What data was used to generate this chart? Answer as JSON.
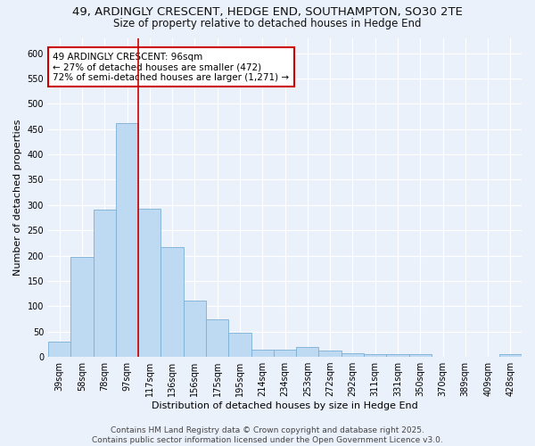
{
  "title_line1": "49, ARDINGLY CRESCENT, HEDGE END, SOUTHAMPTON, SO30 2TE",
  "title_line2": "Size of property relative to detached houses in Hedge End",
  "xlabel": "Distribution of detached houses by size in Hedge End",
  "ylabel": "Number of detached properties",
  "categories": [
    "39sqm",
    "58sqm",
    "78sqm",
    "97sqm",
    "117sqm",
    "136sqm",
    "156sqm",
    "175sqm",
    "195sqm",
    "214sqm",
    "234sqm",
    "253sqm",
    "272sqm",
    "292sqm",
    "311sqm",
    "331sqm",
    "350sqm",
    "370sqm",
    "389sqm",
    "409sqm",
    "428sqm"
  ],
  "values": [
    30,
    197,
    290,
    462,
    293,
    217,
    112,
    75,
    47,
    15,
    15,
    20,
    12,
    8,
    5,
    5,
    5,
    0,
    0,
    0,
    5
  ],
  "bar_color": "#BEDAF2",
  "bar_edge_color": "#7AAFD4",
  "vline_x_index": 3,
  "vline_color": "#CC0000",
  "annotation_line1": "49 ARDINGLY CRESCENT: 96sqm",
  "annotation_line2": "← 27% of detached houses are smaller (472)",
  "annotation_line3": "72% of semi-detached houses are larger (1,271) →",
  "annotation_box_color": "#FFFFFF",
  "annotation_box_edge": "#CC0000",
  "ylim": [
    0,
    630
  ],
  "yticks": [
    0,
    50,
    100,
    150,
    200,
    250,
    300,
    350,
    400,
    450,
    500,
    550,
    600
  ],
  "background_color": "#EBF1FA",
  "grid_color": "#FFFFFF",
  "footer_line1": "Contains HM Land Registry data © Crown copyright and database right 2025.",
  "footer_line2": "Contains public sector information licensed under the Open Government Licence v3.0.",
  "title_fontsize": 9.5,
  "subtitle_fontsize": 8.5,
  "axis_label_fontsize": 8,
  "tick_fontsize": 7,
  "annotation_fontsize": 7.5,
  "footer_fontsize": 6.5
}
